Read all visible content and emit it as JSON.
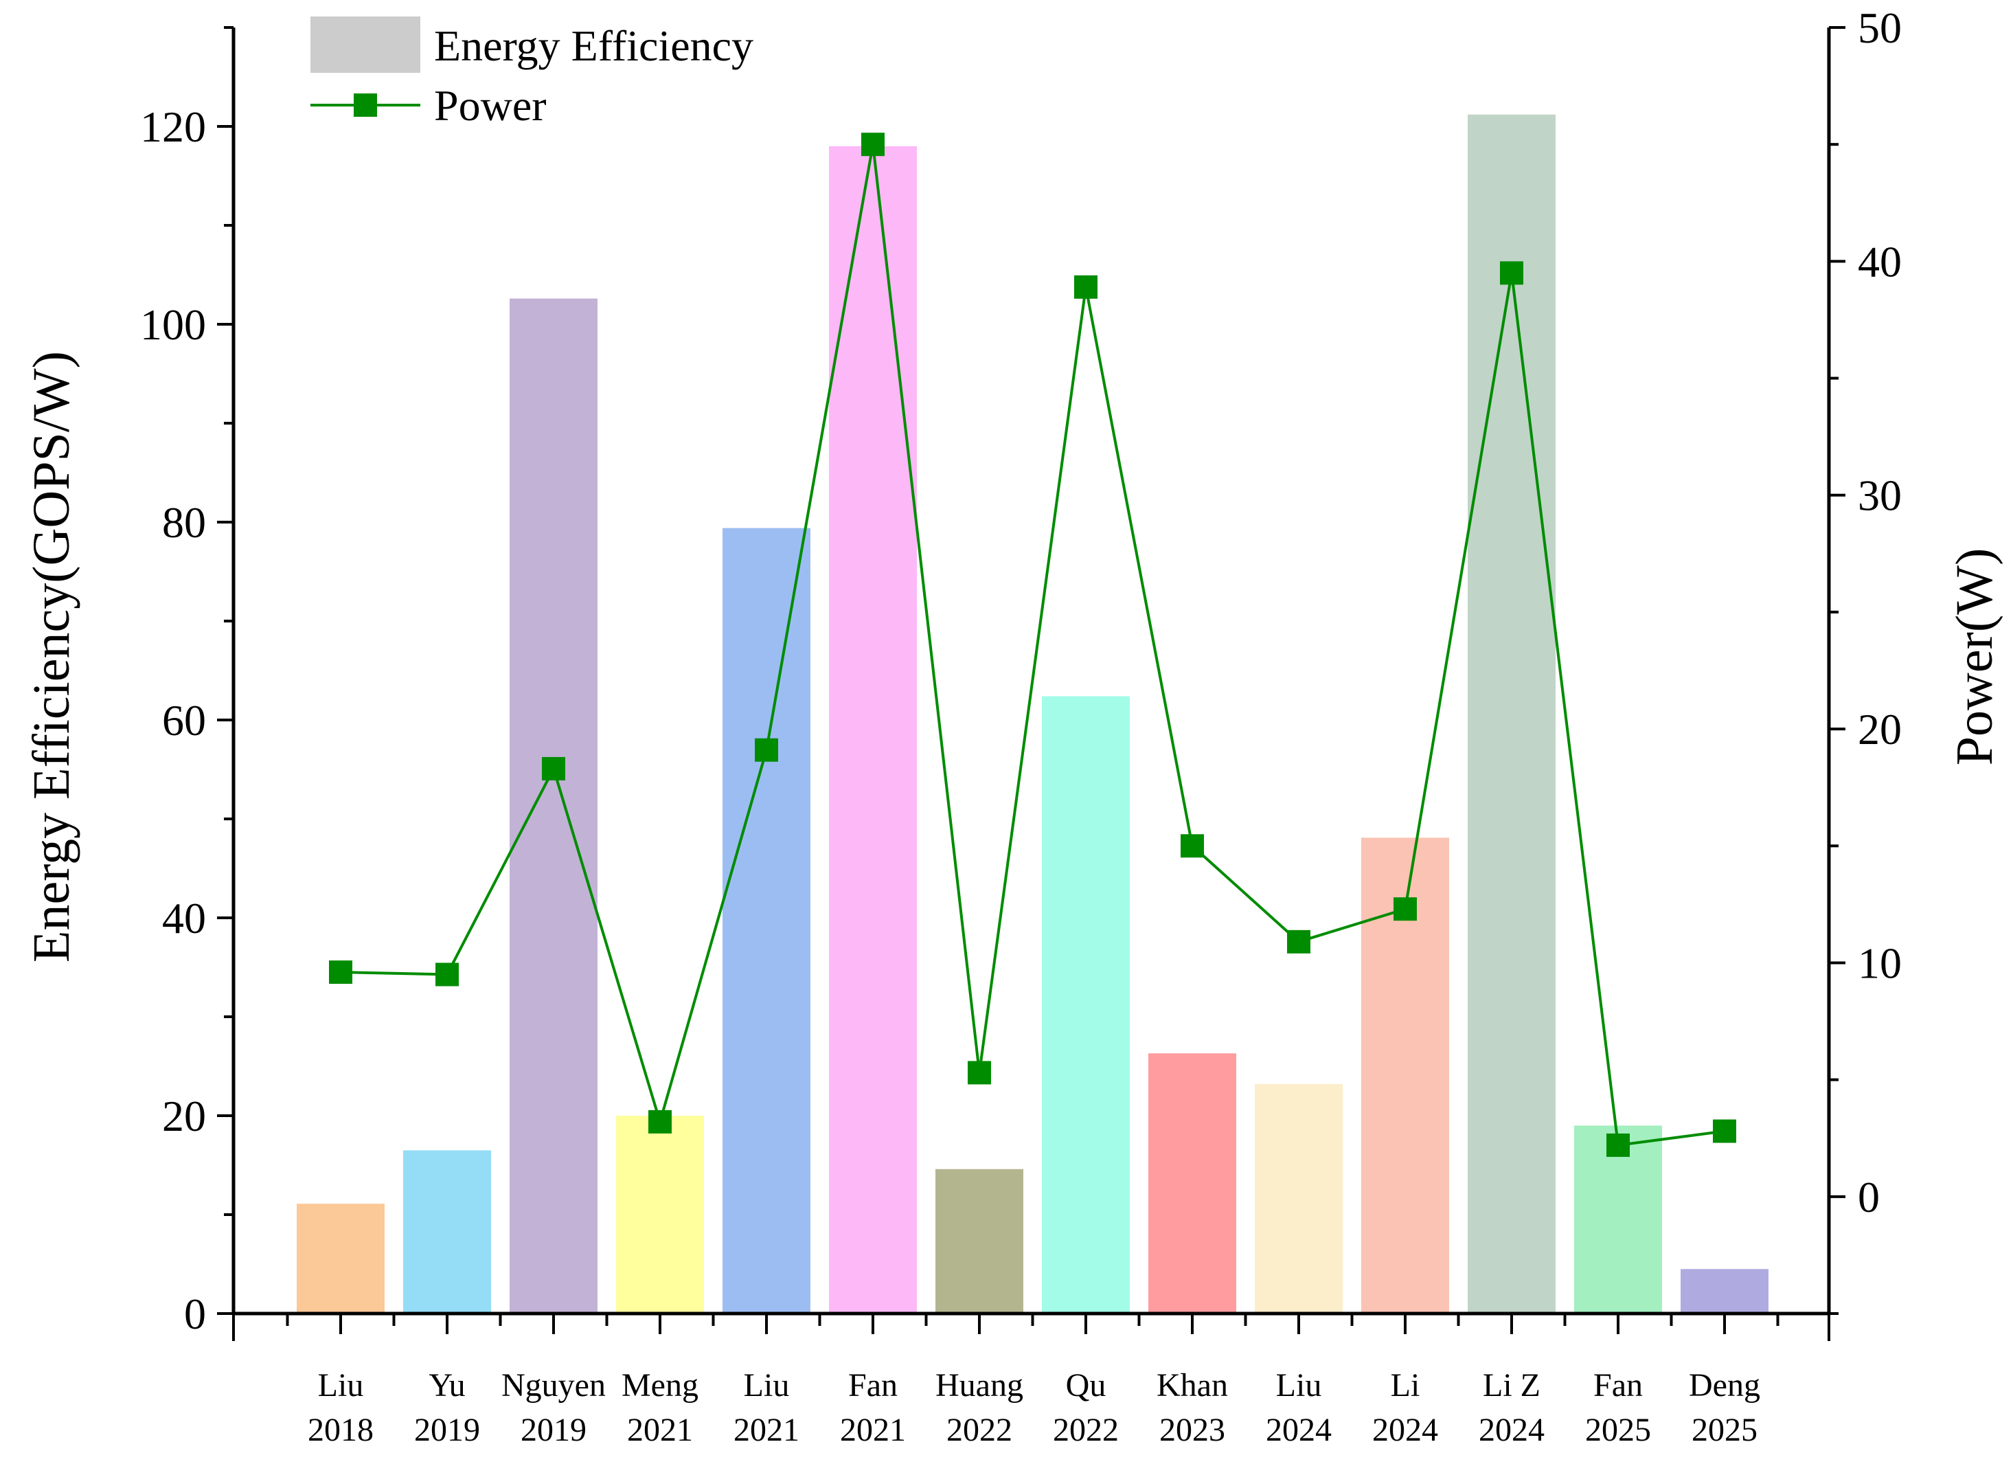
{
  "chart_data": {
    "type": "bar",
    "title": "",
    "xlabel": "",
    "ylabel": "Energy Efficiency(GOPS/W)",
    "y2label": "Power(W)",
    "ylim": [
      0,
      130
    ],
    "y2lim": [
      -5,
      50
    ],
    "yticks": [
      0,
      20,
      40,
      60,
      80,
      100,
      120
    ],
    "y2ticks": [
      0,
      10,
      20,
      30,
      40,
      50
    ],
    "grid": false,
    "legend_position": "top-left",
    "categories": [
      {
        "name": "Liu",
        "year": "2018"
      },
      {
        "name": "Yu",
        "year": "2019"
      },
      {
        "name": "Nguyen",
        "year": "2019"
      },
      {
        "name": "Meng",
        "year": "2021"
      },
      {
        "name": "Liu",
        "year": "2021"
      },
      {
        "name": "Fan",
        "year": "2021"
      },
      {
        "name": "Huang",
        "year": "2022"
      },
      {
        "name": "Qu",
        "year": "2022"
      },
      {
        "name": "Khan",
        "year": "2023"
      },
      {
        "name": "Liu",
        "year": "2024"
      },
      {
        "name": "Li",
        "year": "2024"
      },
      {
        "name": "Li Z",
        "year": "2024"
      },
      {
        "name": "Fan",
        "year": "2025"
      },
      {
        "name": "Deng",
        "year": "2025"
      }
    ],
    "series": [
      {
        "name": "Energy Efficiency",
        "type": "bar",
        "axis": "left",
        "legend_color": "#cccccc",
        "values": [
          11.1,
          16.5,
          102.6,
          20.0,
          79.4,
          118.0,
          14.6,
          62.4,
          26.3,
          23.2,
          48.1,
          121.2,
          19.0,
          4.5
        ],
        "colors": [
          "#FBC898",
          "#95DCF7",
          "#C2B2D6",
          "#FFFF9E",
          "#9CBDF2",
          "#FCB8F7",
          "#B3B58F",
          "#A2FCE7",
          "#FE9CA0",
          "#FCEDCB",
          "#FBC3B3",
          "#C1D4C8",
          "#A3EFBF",
          "#AFABE1"
        ]
      },
      {
        "name": "Power",
        "type": "line",
        "axis": "right",
        "color": "#008C00",
        "values": [
          9.6,
          9.5,
          18.3,
          3.2,
          19.1,
          45.0,
          5.3,
          38.9,
          15.0,
          10.9,
          12.3,
          39.5,
          2.2,
          2.8
        ]
      }
    ]
  }
}
